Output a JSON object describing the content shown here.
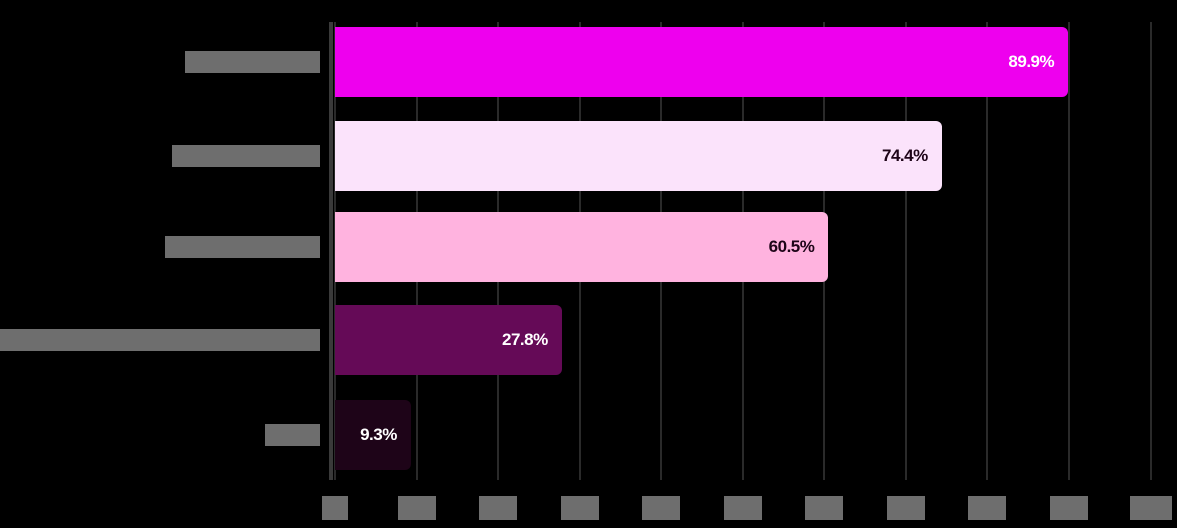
{
  "chart_data": {
    "type": "bar",
    "orientation": "horizontal",
    "title": "",
    "xlabel": "",
    "ylabel": "",
    "categories": [
      "",
      "",
      "",
      "",
      ""
    ],
    "values": [
      89.9,
      74.4,
      60.5,
      27.8,
      9.3
    ],
    "value_labels": [
      "89.9%",
      "74.4%",
      "60.5%",
      "27.8%",
      "9.3%"
    ],
    "bar_colors": [
      "#EE00EE",
      "#FBE3FB",
      "#FFB3DF",
      "#650A57",
      "#1E0418"
    ],
    "value_label_colors": [
      "#FFFFFF",
      "#1E0418",
      "#1E0418",
      "#FFFFFF",
      "#FFFFFF"
    ],
    "xlim": [
      0,
      100
    ],
    "x_ticks": [
      "0%",
      "10%",
      "20%",
      "30%",
      "40%",
      "50%",
      "60%",
      "70%",
      "80%",
      "90%",
      "100%"
    ],
    "grid": true,
    "legend": null,
    "background": "#000000"
  }
}
